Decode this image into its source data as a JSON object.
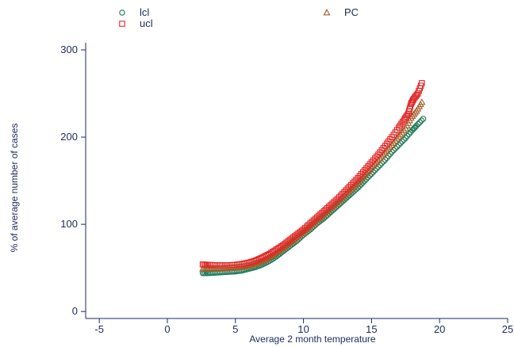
{
  "chart_data": {
    "type": "scatter",
    "xlabel": "Average 2 month temperature",
    "ylabel": "% of average number of cases",
    "xlim": [
      -6,
      25
    ],
    "ylim": [
      -8,
      310
    ],
    "x_ticks": [
      "-5",
      "0",
      "5",
      "10",
      "15",
      "20",
      "25"
    ],
    "x_tick_values": [
      -5,
      0,
      5,
      10,
      15,
      20,
      25
    ],
    "y_ticks": [
      "0",
      "100",
      "200",
      "300"
    ],
    "y_tick_values": [
      0,
      100,
      200,
      300
    ],
    "legend_position": "top",
    "series": [
      {
        "name": "lcl",
        "marker": "circle",
        "color": "#1a7a56",
        "x": [
          2.6,
          3.0,
          3.5,
          4.0,
          4.5,
          5.0,
          5.5,
          6.0,
          6.5,
          7.0,
          7.5,
          8.0,
          8.5,
          9.0,
          9.5,
          10.0,
          10.5,
          11.0,
          11.5,
          12.0,
          12.5,
          13.0,
          13.5,
          14.0,
          14.5,
          15.0,
          15.5,
          16.0,
          16.5,
          17.0,
          17.5,
          18.0,
          18.3,
          18.8
        ],
        "y": [
          44,
          44,
          44.5,
          45,
          45.5,
          46,
          47,
          49,
          51,
          54,
          58,
          63,
          69,
          75,
          81,
          88,
          94,
          101,
          107,
          114,
          121,
          128,
          135,
          142,
          150,
          158,
          166,
          174,
          183,
          191,
          199,
          208,
          213,
          221
        ]
      },
      {
        "name": "ucl",
        "marker": "square",
        "color": "#e02828",
        "x": [
          2.6,
          3.0,
          3.5,
          4.0,
          4.5,
          5.0,
          5.5,
          6.0,
          6.5,
          7.0,
          7.5,
          8.0,
          8.5,
          9.0,
          9.5,
          10.0,
          10.5,
          11.0,
          11.5,
          12.0,
          12.5,
          13.0,
          13.5,
          14.0,
          14.5,
          15.0,
          15.5,
          16.0,
          16.5,
          17.0,
          17.4,
          17.7,
          17.9,
          18.1,
          18.4,
          18.7
        ],
        "y": [
          54,
          53.5,
          53,
          53,
          53,
          53.5,
          54.5,
          56,
          58.5,
          62,
          66,
          71,
          76,
          82,
          88,
          94,
          101,
          108,
          115,
          122,
          129,
          137,
          145,
          153,
          162,
          171,
          180,
          190,
          200,
          211,
          220,
          227,
          238,
          244,
          250,
          262
        ]
      },
      {
        "name": "PC",
        "marker": "triangle",
        "color": "#a0602a",
        "x": [
          2.6,
          3.0,
          3.5,
          4.0,
          4.5,
          5.0,
          5.5,
          6.0,
          6.5,
          7.0,
          7.5,
          8.0,
          8.5,
          9.0,
          9.5,
          10.0,
          10.5,
          11.0,
          11.5,
          12.0,
          12.5,
          13.0,
          13.5,
          14.0,
          14.5,
          15.0,
          15.5,
          16.0,
          16.5,
          17.0,
          17.5,
          17.9,
          18.3,
          18.7
        ],
        "y": [
          49,
          49,
          49,
          49,
          49.5,
          50,
          51,
          52.5,
          55,
          58,
          62,
          67,
          72.5,
          78.5,
          84.5,
          91,
          97.5,
          104.5,
          111,
          118,
          125,
          132.5,
          140,
          147.5,
          156,
          164.5,
          173,
          182,
          191,
          200.5,
          210,
          222,
          230,
          240
        ]
      }
    ]
  }
}
